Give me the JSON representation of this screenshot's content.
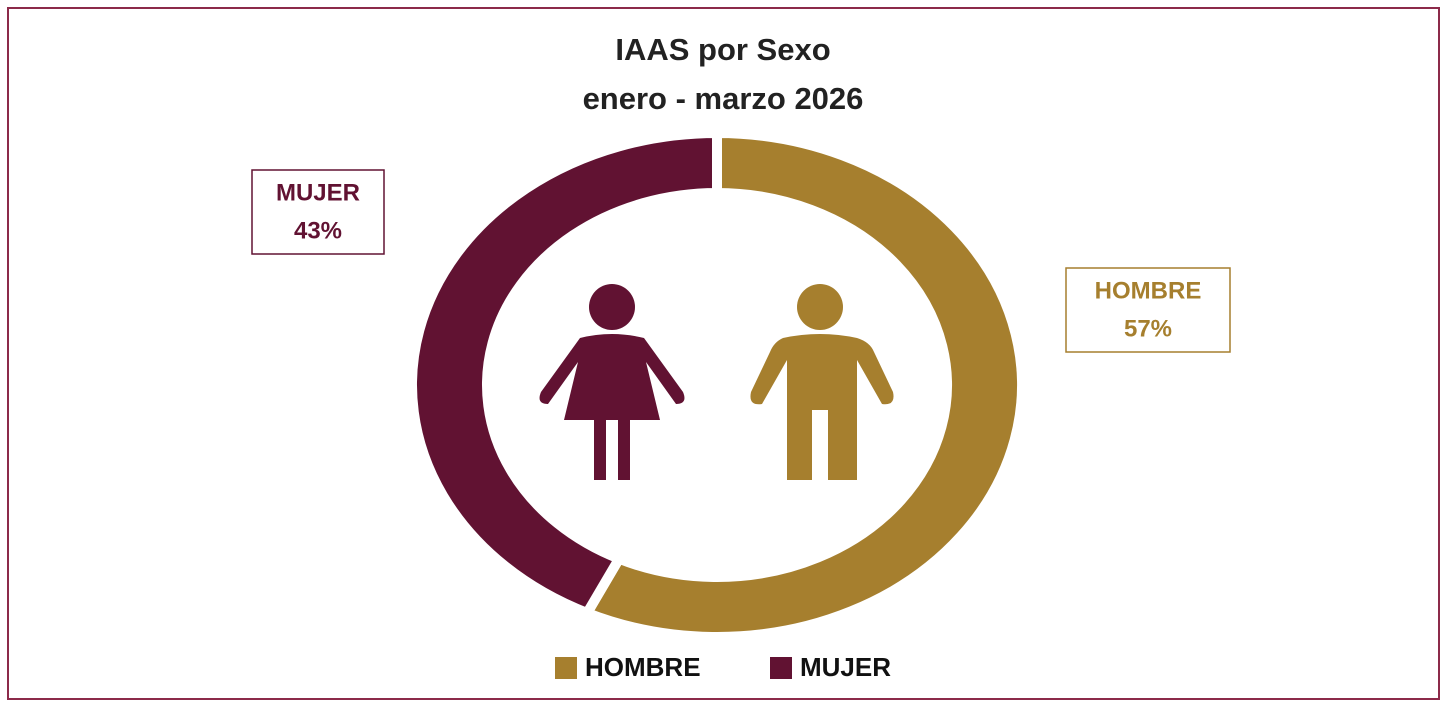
{
  "chart_data": {
    "type": "donut",
    "title": "IAAS por Sexo",
    "subtitle": "enero - marzo 2026",
    "categories": [
      "HOMBRE",
      "MUJER"
    ],
    "values": [
      57,
      43
    ],
    "value_labels": [
      "57%",
      "43%"
    ],
    "colors": [
      "#a67f2e",
      "#611232"
    ],
    "legend": "bottom"
  }
}
